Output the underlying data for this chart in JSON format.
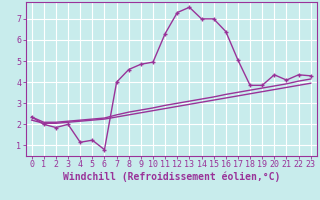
{
  "xlabel": "Windchill (Refroidissement éolien,°C)",
  "ylabel": "",
  "bg_color": "#c8ecec",
  "grid_color": "#ffffff",
  "line_color": "#993399",
  "x_ticks": [
    0,
    1,
    2,
    3,
    4,
    5,
    6,
    7,
    8,
    9,
    10,
    11,
    12,
    13,
    14,
    15,
    16,
    17,
    18,
    19,
    20,
    21,
    22,
    23
  ],
  "y_ticks": [
    1,
    2,
    3,
    4,
    5,
    6,
    7
  ],
  "ylim": [
    0.5,
    7.8
  ],
  "xlim": [
    -0.5,
    23.5
  ],
  "series1_x": [
    0,
    1,
    2,
    3,
    4,
    5,
    6,
    7,
    8,
    9,
    10,
    11,
    12,
    13,
    14,
    15,
    16,
    17,
    18,
    19,
    20,
    21,
    22,
    23
  ],
  "series1_y": [
    2.35,
    2.0,
    1.85,
    2.0,
    1.15,
    1.25,
    0.8,
    4.0,
    4.6,
    4.85,
    4.95,
    6.3,
    7.3,
    7.55,
    7.0,
    7.0,
    6.4,
    5.05,
    3.85,
    3.85,
    4.35,
    4.1,
    4.35,
    4.3
  ],
  "series2_x": [
    0,
    1,
    2,
    3,
    4,
    5,
    6,
    7,
    8,
    9,
    10,
    11,
    12,
    13,
    14,
    15,
    16,
    17,
    18,
    19,
    20,
    21,
    22,
    23
  ],
  "series2_y": [
    2.2,
    2.05,
    2.05,
    2.1,
    2.15,
    2.2,
    2.25,
    2.35,
    2.45,
    2.55,
    2.65,
    2.75,
    2.85,
    2.95,
    3.05,
    3.15,
    3.25,
    3.35,
    3.45,
    3.55,
    3.65,
    3.75,
    3.85,
    3.95
  ],
  "series3_x": [
    0,
    1,
    2,
    3,
    4,
    5,
    6,
    7,
    8,
    9,
    10,
    11,
    12,
    13,
    14,
    15,
    16,
    17,
    18,
    19,
    20,
    21,
    22,
    23
  ],
  "series3_y": [
    2.35,
    2.1,
    2.1,
    2.15,
    2.2,
    2.25,
    2.3,
    2.45,
    2.58,
    2.68,
    2.78,
    2.9,
    3.0,
    3.1,
    3.2,
    3.3,
    3.42,
    3.52,
    3.62,
    3.72,
    3.82,
    3.92,
    4.05,
    4.15
  ],
  "tick_fontsize": 6,
  "xlabel_fontsize": 7,
  "marker": "+",
  "marker_size": 3,
  "line_width": 1.0
}
